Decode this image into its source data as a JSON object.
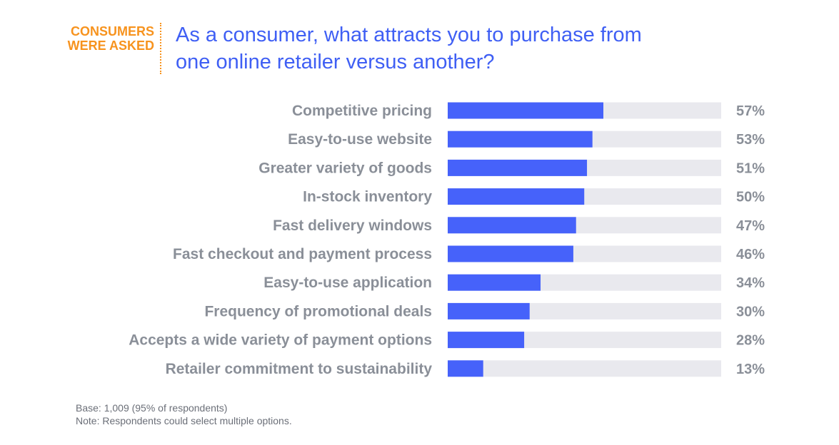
{
  "header": {
    "kicker_line1": "CONSUMERS",
    "kicker_line2": "WERE ASKED",
    "question_line1": "As a consumer, what attracts you to purchase from",
    "question_line2": "one online retailer versus another?"
  },
  "chart_data": {
    "type": "bar",
    "orientation": "horizontal",
    "categories": [
      "Competitive pricing",
      "Easy-to-use website",
      "Greater variety of goods",
      "In-stock inventory",
      "Fast delivery windows",
      "Fast checkout and payment process",
      "Easy-to-use application",
      "Frequency of promotional deals",
      "Accepts a wide variety of payment options",
      "Retailer commitment to sustainability"
    ],
    "values": [
      57,
      53,
      51,
      50,
      47,
      46,
      34,
      30,
      28,
      13
    ],
    "value_labels": [
      "57%",
      "53%",
      "51%",
      "50%",
      "47%",
      "46%",
      "34%",
      "30%",
      "28%",
      "13%"
    ],
    "xlim": [
      0,
      100
    ],
    "grid": false,
    "colors": {
      "bar": "#4662fa",
      "track": "#e9e9ee"
    }
  },
  "footer": {
    "base": "Base: 1,009 (95% of respondents)",
    "note": "Note: Respondents could select multiple options."
  }
}
